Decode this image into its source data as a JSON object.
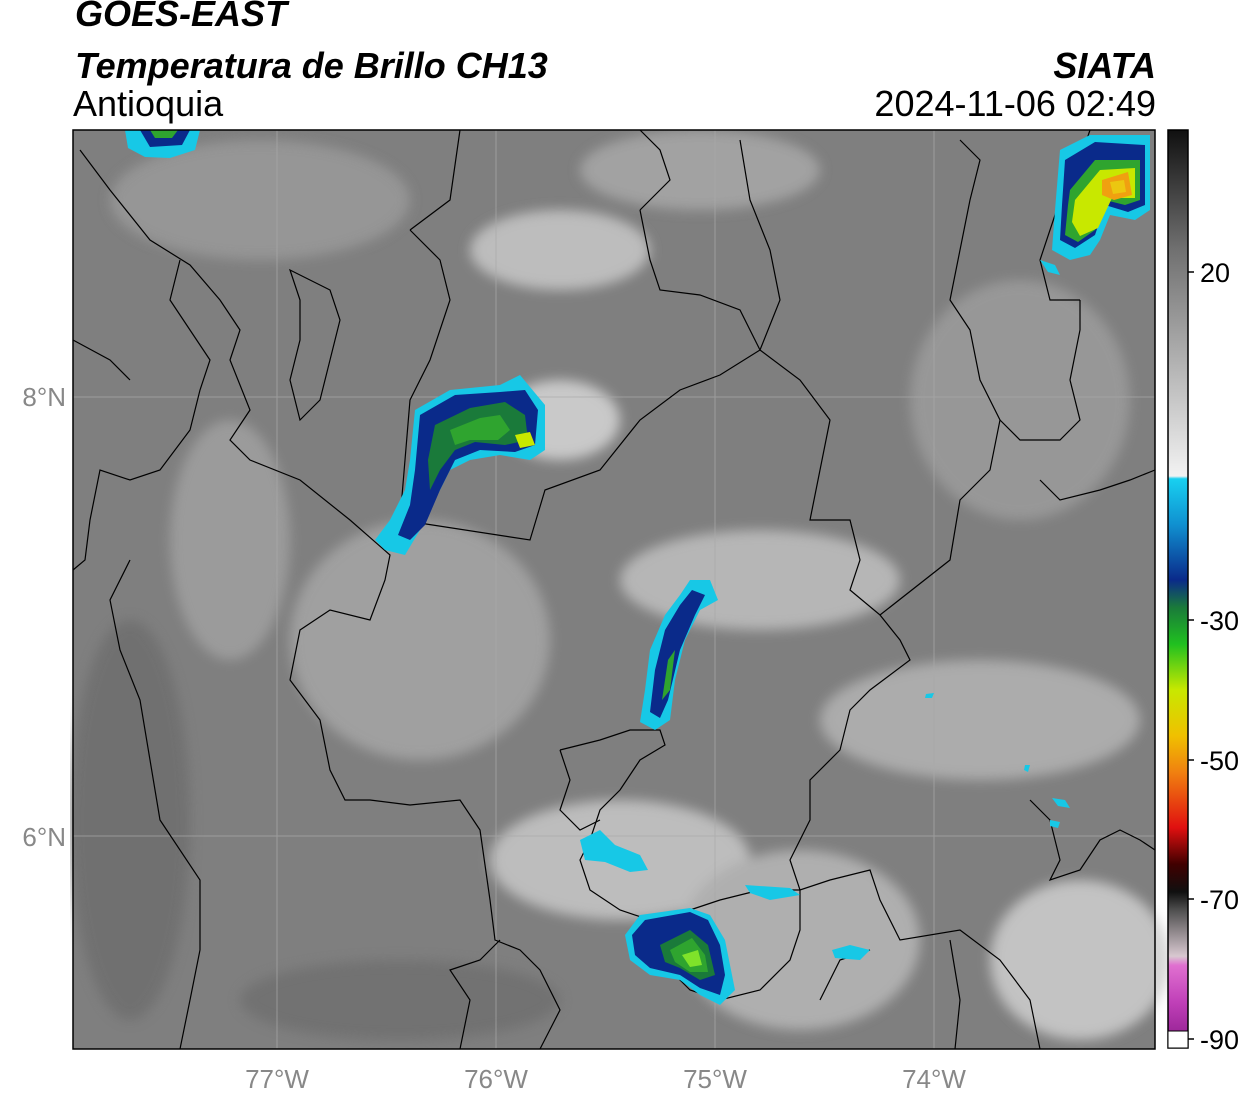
{
  "header": {
    "satellite": "GOES-EAST",
    "product": "Temperatura de Brillo CH13",
    "region": "Antioquia",
    "organization": "SIATA",
    "datetime": "2024-11-06 02:49"
  },
  "map": {
    "x_ticks": [
      "77°W",
      "76°W",
      "75°W",
      "74°W"
    ],
    "y_ticks": [
      "8°N",
      "6°N"
    ]
  },
  "colorbar": {
    "ticks": [
      "20",
      "-30",
      "-50",
      "-70",
      "-90"
    ]
  },
  "colors": {
    "cyan": "#17c8e6",
    "dark_blue": "#0a2a8a",
    "green": "#2fa42f",
    "bright_green": "#7fe22a",
    "yellow": "#e8ee10",
    "orange": "#f18c14",
    "red": "#e81212",
    "magenta": "#d040c0"
  }
}
